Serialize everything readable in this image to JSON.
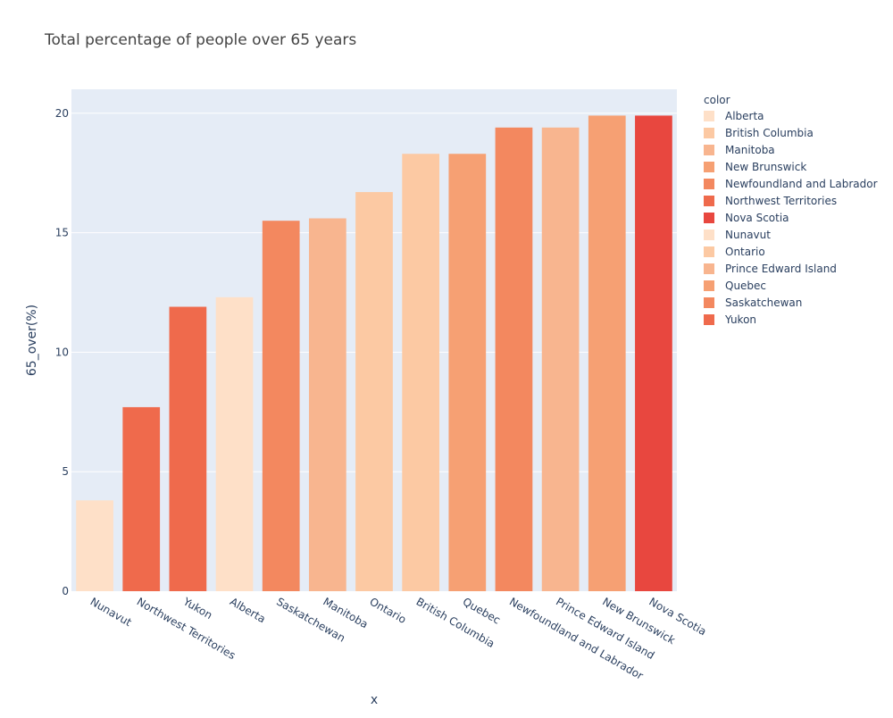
{
  "chart_data": {
    "type": "bar",
    "title": "Total percentage of people over 65 years",
    "xlabel": "x",
    "ylabel": "65_over(%)",
    "categories": [
      "Nunavut",
      "Northwest Territories",
      "Yukon",
      "Alberta",
      "Saskatchewan",
      "Manitoba",
      "Ontario",
      "British Columbia",
      "Quebec",
      "Newfoundland and Labrador",
      "Prince Edward Island",
      "New Brunswick",
      "Nova Scotia"
    ],
    "values": [
      3.8,
      7.7,
      11.9,
      12.3,
      15.5,
      15.6,
      16.7,
      18.3,
      18.3,
      19.4,
      19.4,
      19.9,
      19.9
    ],
    "bar_colors": [
      "#fee0c8",
      "#ef6a4c",
      "#ef6a4c",
      "#fee0c8",
      "#f3885f",
      "#f8b58f",
      "#fcc9a3",
      "#fcc9a3",
      "#f6a073",
      "#f3885f",
      "#f8b58f",
      "#f6a073",
      "#e8473f"
    ],
    "ylim": [
      0,
      21
    ],
    "yticks": [
      0,
      5,
      10,
      15,
      20
    ],
    "grid": true,
    "legend": {
      "title": "color",
      "placement": "right",
      "entries": [
        {
          "name": "Alberta",
          "color": "#fee0c8"
        },
        {
          "name": "British Columbia",
          "color": "#fcc9a3"
        },
        {
          "name": "Manitoba",
          "color": "#f8b58f"
        },
        {
          "name": "New Brunswick",
          "color": "#f6a073"
        },
        {
          "name": "Newfoundland and Labrador",
          "color": "#f3885f"
        },
        {
          "name": "Northwest Territories",
          "color": "#ef6a4c"
        },
        {
          "name": "Nova Scotia",
          "color": "#e8473f"
        },
        {
          "name": "Nunavut",
          "color": "#fee0c8"
        },
        {
          "name": "Ontario",
          "color": "#fcc9a3"
        },
        {
          "name": "Prince Edward Island",
          "color": "#f8b58f"
        },
        {
          "name": "Quebec",
          "color": "#f6a073"
        },
        {
          "name": "Saskatchewan",
          "color": "#f3885f"
        },
        {
          "name": "Yukon",
          "color": "#ef6a4c"
        }
      ]
    },
    "plot_background": "#e5ecf6",
    "gridline_color": "#ffffff"
  }
}
